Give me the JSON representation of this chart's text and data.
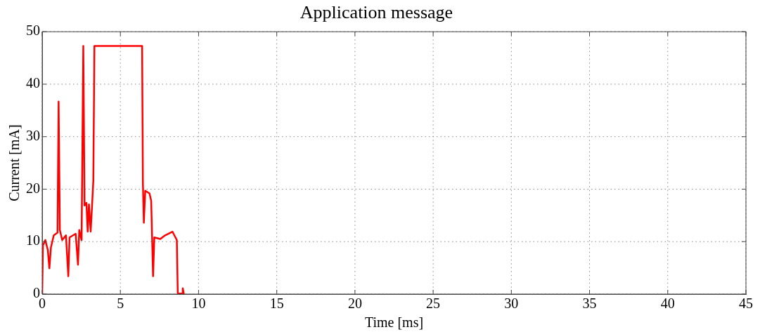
{
  "chart_data": {
    "type": "line",
    "title": "Application message",
    "xlabel": "Time [ms]",
    "ylabel": "Current [mA]",
    "xlim": [
      0,
      45
    ],
    "xticks": [
      0,
      5,
      10,
      15,
      20,
      25,
      30,
      35,
      40,
      45
    ],
    "ylim": [
      0,
      50
    ],
    "yticks": [
      0,
      10,
      20,
      30,
      40,
      50
    ],
    "grid": true,
    "marker": "none",
    "line_style": "solid",
    "series": [
      {
        "color": "#ff0000",
        "x": [
          0,
          0.05,
          0.2,
          0.36,
          0.46,
          0.56,
          0.74,
          0.98,
          1.05,
          1.13,
          1.28,
          1.52,
          1.67,
          1.75,
          2.14,
          2.29,
          2.37,
          2.52,
          2.63,
          2.71,
          2.83,
          2.91,
          2.99,
          3.1,
          3.19,
          3.27,
          3.34,
          6.39,
          6.44,
          6.5,
          6.59,
          6.86,
          6.97,
          7.09,
          7.17,
          7.55,
          7.86,
          8.33,
          8.61,
          8.67,
          8.95,
          8.99,
          9.06
        ],
        "values": [
          0,
          9.3,
          10.3,
          8.4,
          4.9,
          8.9,
          11.2,
          11.7,
          36.7,
          12.2,
          10.3,
          11.2,
          3.4,
          10.8,
          11.5,
          5.6,
          12.2,
          10.3,
          47.3,
          16.9,
          17.4,
          11.9,
          17.1,
          11.9,
          16.9,
          21.6,
          47.3,
          47.3,
          21.1,
          13.6,
          19.7,
          19.2,
          17.8,
          3.4,
          10.8,
          10.5,
          11.2,
          11.9,
          10.3,
          0.1,
          0.1,
          1.1,
          0
        ]
      }
    ]
  }
}
